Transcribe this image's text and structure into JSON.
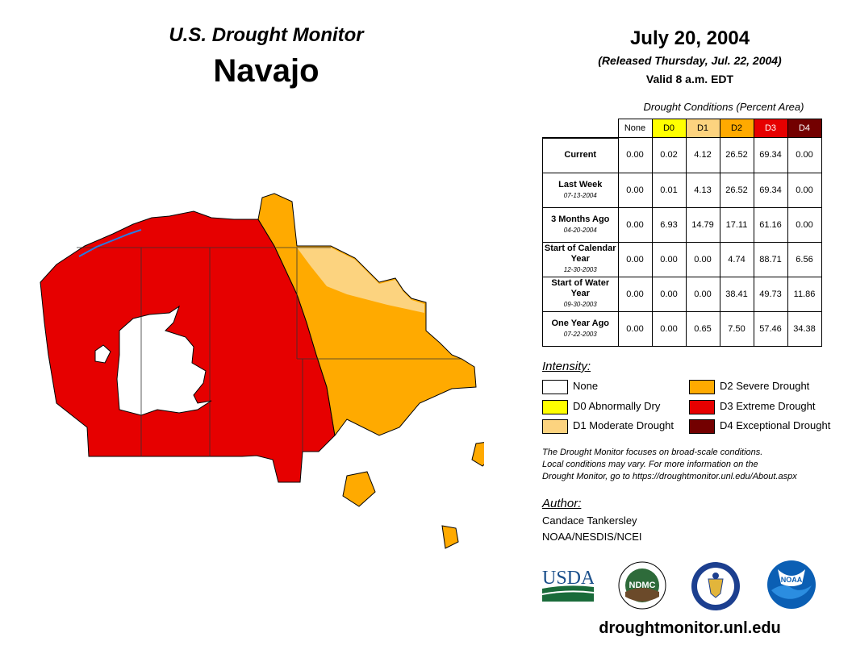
{
  "header": {
    "title": "U.S. Drought Monitor",
    "region": "Navajo",
    "date": "July 20, 2004",
    "released": "(Released Thursday, Jul. 22, 2004)",
    "valid": "Valid 8 a.m. EDT"
  },
  "table": {
    "title": "Drought Conditions (Percent Area)",
    "columns": [
      "None",
      "D0",
      "D1",
      "D2",
      "D3",
      "D4"
    ],
    "column_colors": [
      "#ffffff",
      "#ffff00",
      "#fcd37f",
      "#ffaa00",
      "#e60000",
      "#730000"
    ],
    "rows": [
      {
        "label": "Current",
        "date": "",
        "values": [
          "0.00",
          "0.02",
          "4.12",
          "26.52",
          "69.34",
          "0.00"
        ]
      },
      {
        "label": "Last Week",
        "date": "07-13-2004",
        "values": [
          "0.00",
          "0.01",
          "4.13",
          "26.52",
          "69.34",
          "0.00"
        ]
      },
      {
        "label": "3 Months Ago",
        "date": "04-20-2004",
        "values": [
          "0.00",
          "6.93",
          "14.79",
          "17.11",
          "61.16",
          "0.00"
        ]
      },
      {
        "label": "Start of Calendar Year",
        "date": "12-30-2003",
        "values": [
          "0.00",
          "0.00",
          "0.00",
          "4.74",
          "88.71",
          "6.56"
        ]
      },
      {
        "label": "Start of Water Year",
        "date": "09-30-2003",
        "values": [
          "0.00",
          "0.00",
          "0.00",
          "38.41",
          "49.73",
          "11.86"
        ]
      },
      {
        "label": "One Year Ago",
        "date": "07-22-2003",
        "values": [
          "0.00",
          "0.00",
          "0.65",
          "7.50",
          "57.46",
          "34.38"
        ]
      }
    ]
  },
  "legend": {
    "title": "Intensity:",
    "items": [
      {
        "label": "None",
        "color": "#ffffff"
      },
      {
        "label": "D0 Abnormally Dry",
        "color": "#ffff00"
      },
      {
        "label": "D1 Moderate Drought",
        "color": "#fcd37f"
      },
      {
        "label": "D2 Severe Drought",
        "color": "#ffaa00"
      },
      {
        "label": "D3 Extreme Drought",
        "color": "#e60000"
      },
      {
        "label": "D4 Exceptional Drought",
        "color": "#730000"
      }
    ]
  },
  "note": {
    "line1": "The Drought Monitor focuses on broad-scale conditions.",
    "line2": "Local conditions may vary. For more information on the",
    "line3": "Drought Monitor, go to https://droughtmonitor.unl.edu/About.aspx"
  },
  "author": {
    "title": "Author:",
    "name": "Candace Tankersley",
    "org": "NOAA/NESDIS/NCEI"
  },
  "logos": {
    "usda": "USDA",
    "ndmc": "NDMC",
    "noaa": "NOAA"
  },
  "site": "droughtmonitor.unl.edu"
}
